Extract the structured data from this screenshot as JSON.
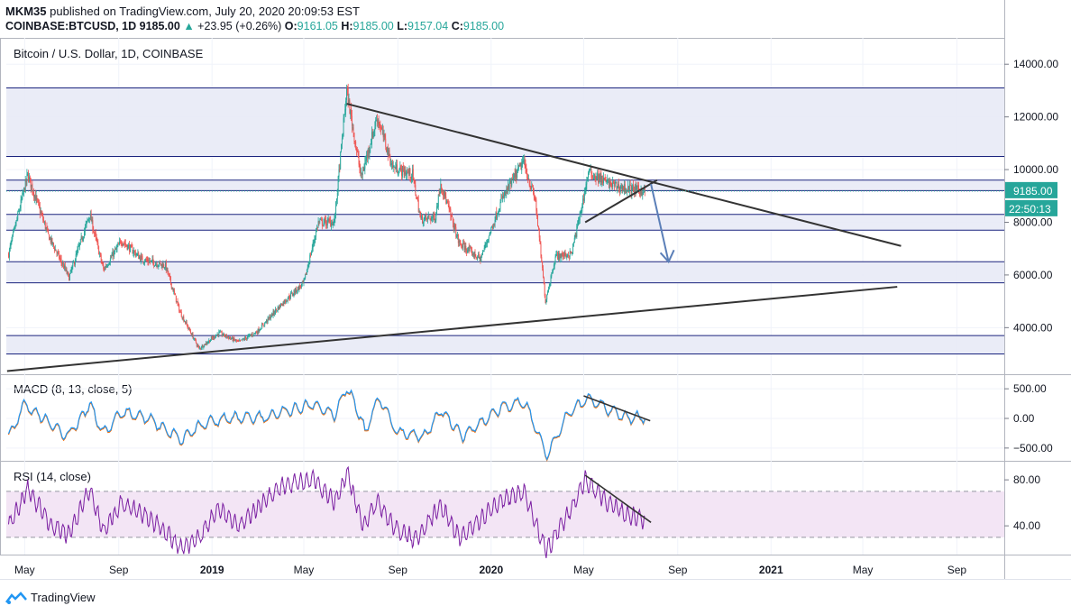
{
  "header": {
    "author": "MKM35",
    "published_text": "published on TradingView.com, July 20, 2020 20:09:53 EST",
    "symbol": "COINBASE:BTCUSD, 1D",
    "last": "9185.00",
    "change_arrow": "▲",
    "change": "+23.95 (+0.26%)",
    "o_label": "O:",
    "o": "9161.05",
    "h_label": "H:",
    "h": "9185.00",
    "l_label": "L:",
    "l": "9157.04",
    "c_label": "C:",
    "c": "9185.00"
  },
  "footer": {
    "brand": "TradingView",
    "logo_icon": "tradingview-logo-icon"
  },
  "colors": {
    "up": "#26a69a",
    "down": "#ef5350",
    "zone_fill": "#e8eaf6",
    "zone_line": "#1a237e",
    "trend": "#333333",
    "arrow": "#5b7fb8",
    "macd": "#2196f3",
    "signal": "#ff6d00",
    "rsi": "#7b1fa2",
    "rsi_band": "#f3e5f5",
    "price_label_bg": "#131722"
  },
  "chart_data": [
    {
      "type": "candlestick",
      "title": "Bitcoin / U.S. Dollar, 1D, COINBASE",
      "y_axis": {
        "ticks": [
          4000,
          6000,
          8000,
          10000,
          12000,
          14000
        ],
        "tick_labels": [
          "4000.00",
          "6000.00",
          "8000.00",
          "10000.00",
          "12000.00",
          "14000.00"
        ],
        "range": [
          2300,
          15000
        ]
      },
      "x_axis": {
        "tick_labels": [
          "May",
          "Sep",
          "2019",
          "May",
          "Sep",
          "2020",
          "May",
          "Sep",
          "2021",
          "May",
          "Sep"
        ],
        "tick_dates": [
          "2018-05-01",
          "2018-09-01",
          "2019-01-01",
          "2019-05-01",
          "2019-09-01",
          "2020-01-01",
          "2020-05-01",
          "2020-09-01",
          "2021-01-01",
          "2021-05-01",
          "2021-09-01"
        ]
      },
      "last_price_label": "9185.00",
      "countdown_label": "22:50:13",
      "close_path": [
        [
          "2018-04-10",
          6800
        ],
        [
          "2018-05-05",
          9800
        ],
        [
          "2018-06-01",
          7500
        ],
        [
          "2018-06-28",
          5900
        ],
        [
          "2018-07-25",
          8300
        ],
        [
          "2018-08-12",
          6200
        ],
        [
          "2018-09-05",
          7300
        ],
        [
          "2018-10-01",
          6600
        ],
        [
          "2018-11-01",
          6350
        ],
        [
          "2018-11-20",
          4600
        ],
        [
          "2018-12-15",
          3200
        ],
        [
          "2019-01-10",
          3800
        ],
        [
          "2019-02-05",
          3450
        ],
        [
          "2019-03-01",
          3850
        ],
        [
          "2019-04-02",
          4900
        ],
        [
          "2019-05-01",
          5700
        ],
        [
          "2019-05-20",
          8000
        ],
        [
          "2019-06-10",
          8000
        ],
        [
          "2019-06-26",
          13000
        ],
        [
          "2019-07-15",
          9700
        ],
        [
          "2019-08-05",
          12000
        ],
        [
          "2019-08-25",
          10100
        ],
        [
          "2019-09-20",
          9800
        ],
        [
          "2019-10-01",
          8100
        ],
        [
          "2019-10-20",
          8200
        ],
        [
          "2019-10-27",
          9500
        ],
        [
          "2019-11-20",
          7200
        ],
        [
          "2019-12-18",
          6600
        ],
        [
          "2020-01-14",
          8800
        ],
        [
          "2020-02-12",
          10300
        ],
        [
          "2020-02-28",
          8800
        ],
        [
          "2020-03-12",
          5000
        ],
        [
          "2020-03-25",
          6700
        ],
        [
          "2020-04-15",
          6800
        ],
        [
          "2020-04-30",
          8800
        ],
        [
          "2020-05-07",
          9900
        ],
        [
          "2020-06-01",
          9500
        ],
        [
          "2020-06-20",
          9300
        ],
        [
          "2020-07-20",
          9185
        ]
      ],
      "annotations": {
        "zones": [
          [
            3000,
            3700
          ],
          [
            5700,
            6500
          ],
          [
            7700,
            8300
          ],
          [
            9200,
            9600
          ],
          [
            10500,
            13100
          ]
        ],
        "trendlines": [
          {
            "from": [
              "2019-06-26",
              12500
            ],
            "to": [
              "2021-06-20",
              7100
            ]
          },
          {
            "from": [
              "2018-04-08",
              2350
            ],
            "to": [
              "2021-06-15",
              5550
            ]
          },
          {
            "from": [
              "2020-05-03",
              8000
            ],
            "to": [
              "2020-08-05",
              9600
            ]
          }
        ],
        "arrow": {
          "from": [
            "2020-07-28",
            9450
          ],
          "to": [
            "2020-08-20",
            6500
          ]
        }
      }
    },
    {
      "type": "line",
      "title": "MACD (8, 13, close, 5)",
      "y_axis": {
        "ticks": [
          500,
          0,
          -500
        ],
        "tick_labels": [
          "500.00",
          "0.00",
          "−500.00"
        ],
        "range": [
          -700,
          700
        ]
      },
      "series": [
        {
          "name": "MACD",
          "values": [
            [
              "2018-04-10",
              -300
            ],
            [
              "2018-05-01",
              250
            ],
            [
              "2018-06-05",
              -100
            ],
            [
              "2018-06-28",
              -300
            ],
            [
              "2018-07-25",
              250
            ],
            [
              "2018-08-12",
              -250
            ],
            [
              "2018-09-05",
              120
            ],
            [
              "2018-10-10",
              0
            ],
            [
              "2018-11-22",
              -350
            ],
            [
              "2018-12-20",
              -80
            ],
            [
              "2019-01-20",
              0
            ],
            [
              "2019-03-10",
              30
            ],
            [
              "2019-05-15",
              250
            ],
            [
              "2019-06-10",
              60
            ],
            [
              "2019-06-27",
              550
            ],
            [
              "2019-07-20",
              -200
            ],
            [
              "2019-08-08",
              350
            ],
            [
              "2019-09-01",
              -250
            ],
            [
              "2019-10-05",
              -300
            ],
            [
              "2019-10-28",
              150
            ],
            [
              "2019-11-25",
              -300
            ],
            [
              "2020-01-15",
              200
            ],
            [
              "2020-02-14",
              280
            ],
            [
              "2020-03-14",
              -620
            ],
            [
              "2020-04-10",
              80
            ],
            [
              "2020-05-05",
              360
            ],
            [
              "2020-06-01",
              160
            ],
            [
              "2020-06-25",
              20
            ],
            [
              "2020-07-20",
              10
            ]
          ]
        },
        {
          "name": "Signal",
          "values": []
        }
      ],
      "trendline": {
        "from": [
          "2020-05-01",
          380
        ],
        "to": [
          "2020-07-27",
          -40
        ]
      }
    },
    {
      "type": "line",
      "title": "RSI (14, close)",
      "y_axis": {
        "ticks": [
          80,
          40
        ],
        "tick_labels": [
          "80.00",
          "40.00"
        ],
        "range": [
          15,
          95
        ]
      },
      "band": [
        30,
        70
      ],
      "series": [
        {
          "name": "RSI",
          "values": [
            [
              "2018-04-10",
              40
            ],
            [
              "2018-05-05",
              72
            ],
            [
              "2018-06-05",
              40
            ],
            [
              "2018-06-28",
              32
            ],
            [
              "2018-07-25",
              72
            ],
            [
              "2018-08-12",
              35
            ],
            [
              "2018-09-05",
              60
            ],
            [
              "2018-10-15",
              45
            ],
            [
              "2018-11-22",
              20
            ],
            [
              "2018-12-15",
              30
            ],
            [
              "2019-01-10",
              55
            ],
            [
              "2019-02-05",
              40
            ],
            [
              "2019-04-02",
              75
            ],
            [
              "2019-05-15",
              80
            ],
            [
              "2019-06-10",
              60
            ],
            [
              "2019-06-27",
              85
            ],
            [
              "2019-07-18",
              40
            ],
            [
              "2019-08-05",
              62
            ],
            [
              "2019-08-28",
              38
            ],
            [
              "2019-09-25",
              28
            ],
            [
              "2019-10-27",
              58
            ],
            [
              "2019-11-22",
              30
            ],
            [
              "2020-01-15",
              62
            ],
            [
              "2020-02-12",
              70
            ],
            [
              "2020-03-13",
              18
            ],
            [
              "2020-04-15",
              55
            ],
            [
              "2020-05-03",
              80
            ],
            [
              "2020-06-01",
              60
            ],
            [
              "2020-06-25",
              50
            ],
            [
              "2020-07-20",
              45
            ]
          ]
        }
      ],
      "trendline": {
        "from": [
          "2020-05-03",
          84
        ],
        "to": [
          "2020-07-28",
          43
        ]
      }
    }
  ]
}
